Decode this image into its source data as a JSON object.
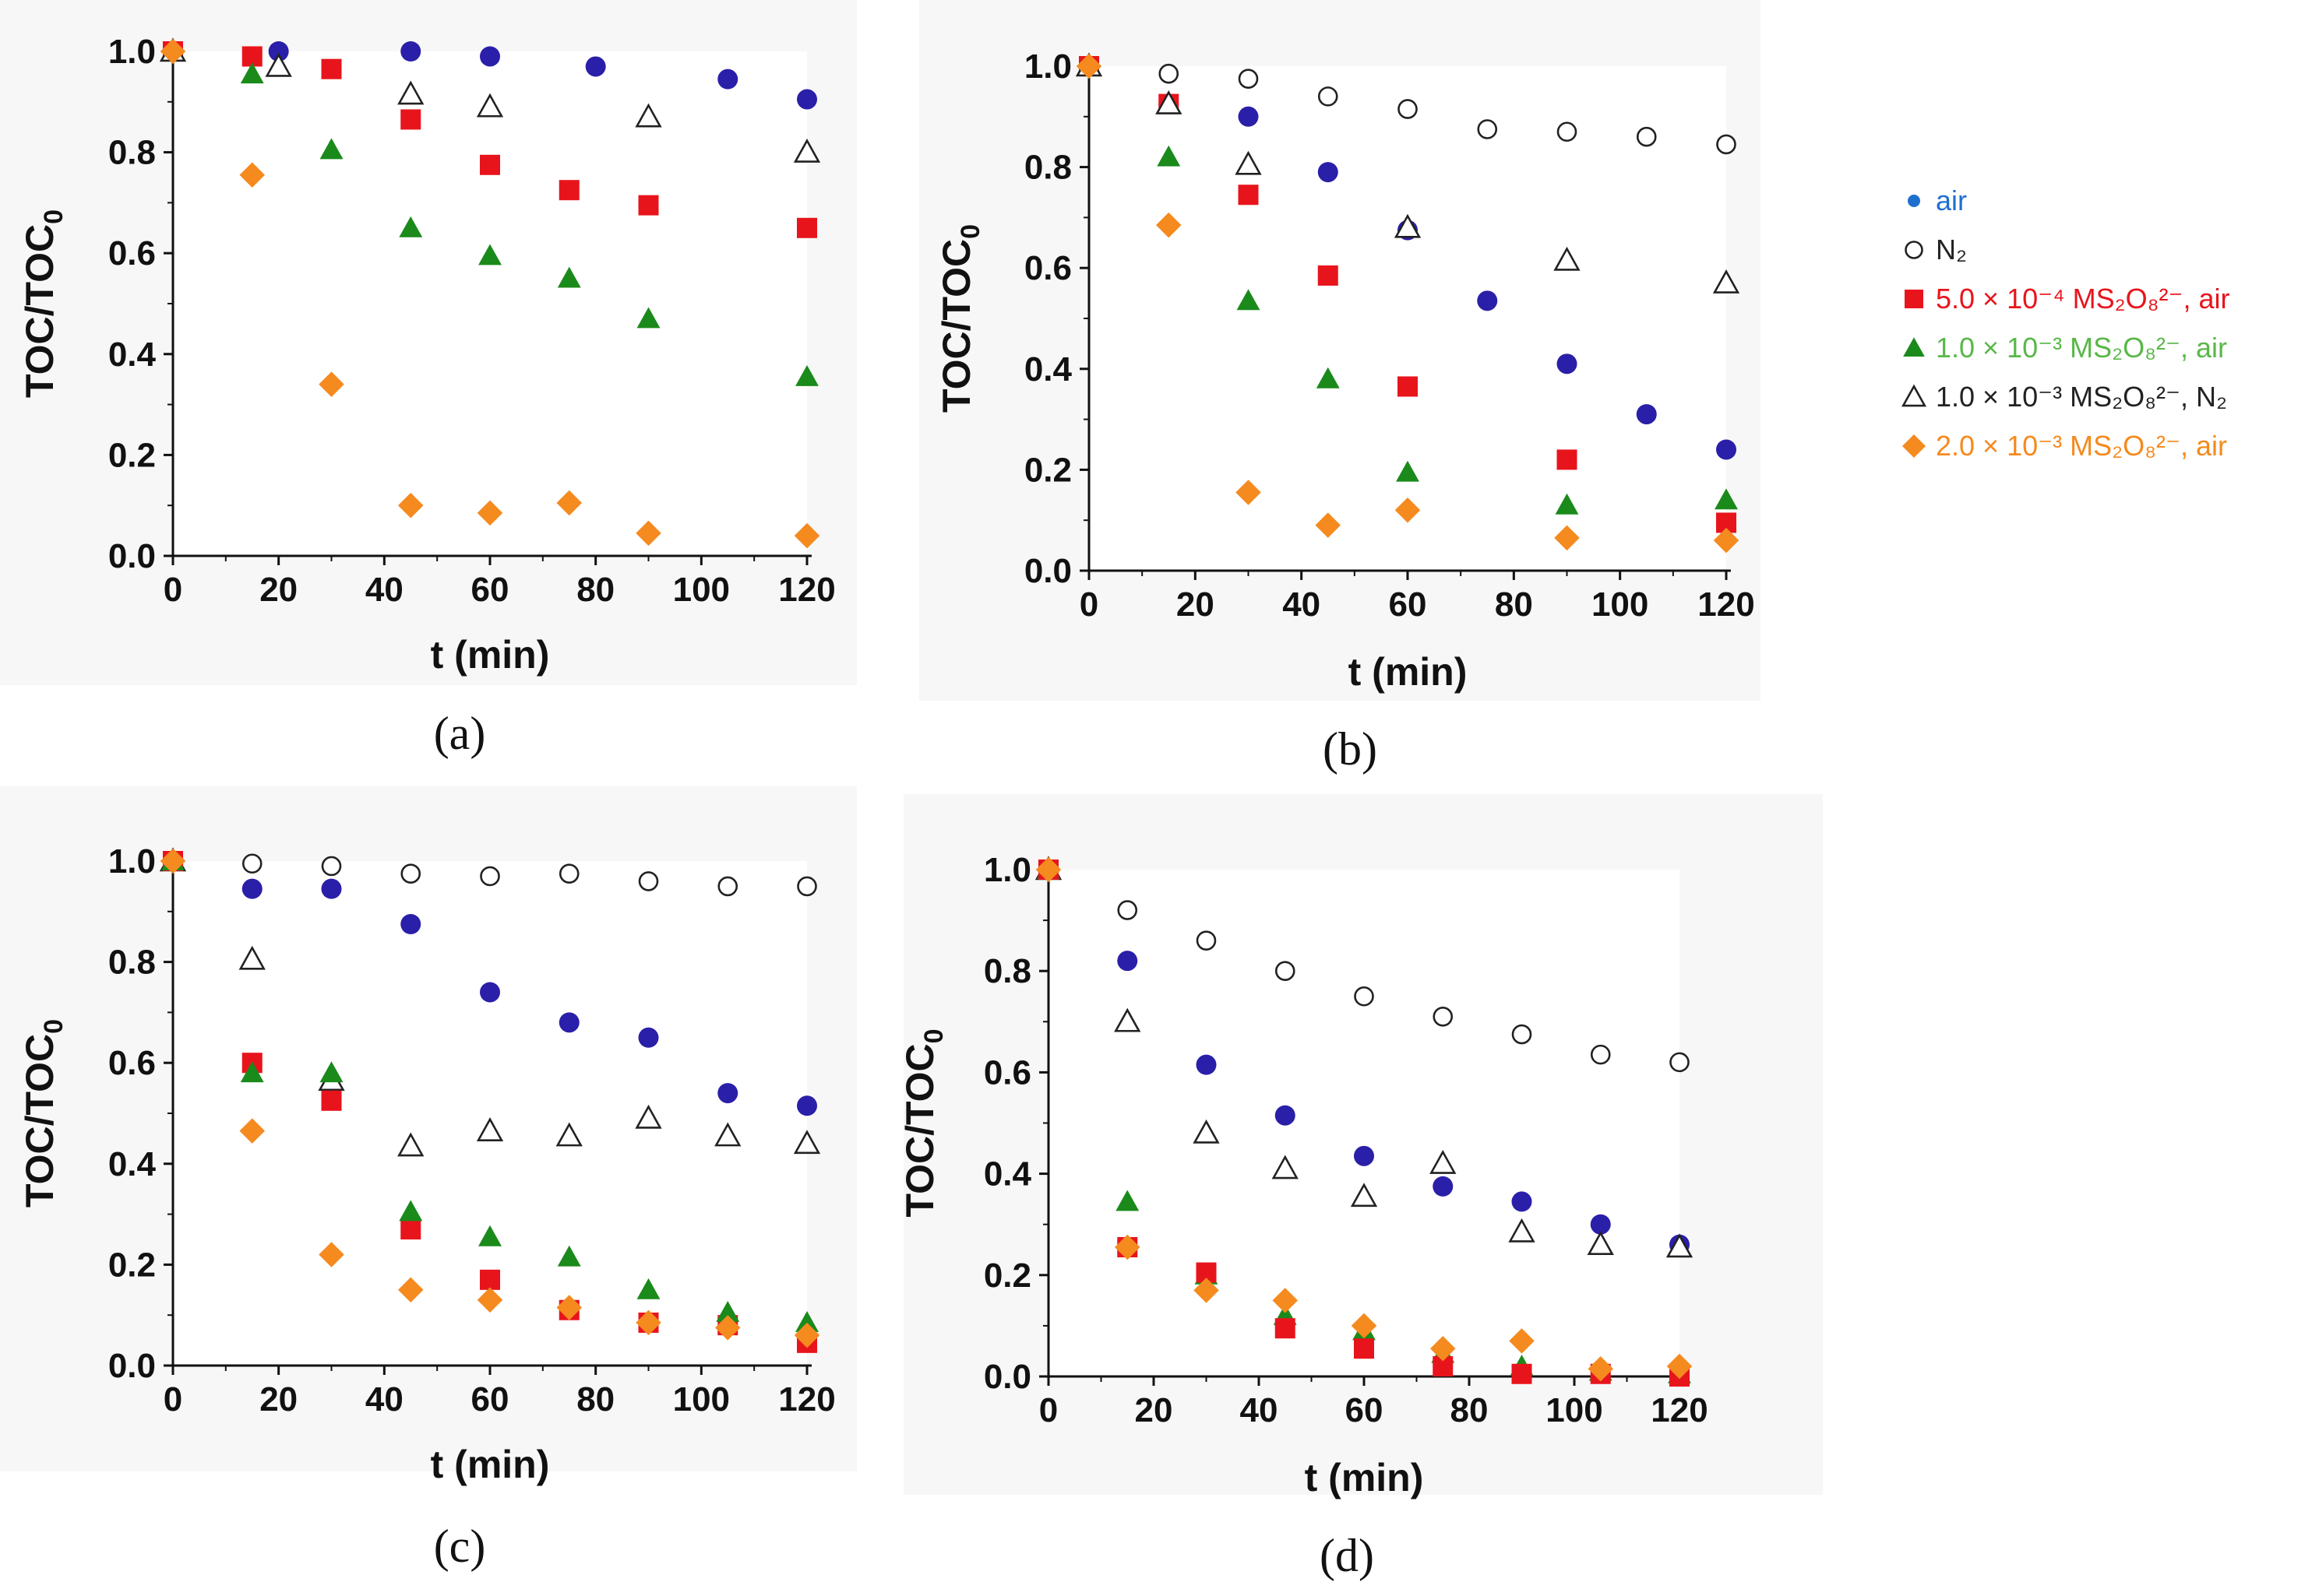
{
  "legend": [
    {
      "key": "air",
      "label": "air",
      "marker": "circle",
      "color": "#2a1fa8",
      "text_color": "#1f6fd1",
      "fill": true
    },
    {
      "key": "N2",
      "label": "N₂",
      "marker": "circle",
      "color": "#222222",
      "text_color": "#222222",
      "fill": false
    },
    {
      "key": "s5e4_air",
      "label": "5.0 × 10⁻⁴ MS₂O₈²⁻, air",
      "marker": "square",
      "color": "#e8141c",
      "text_color": "#e8141c",
      "fill": true
    },
    {
      "key": "s1e3_air",
      "label": "1.0 × 10⁻³ MS₂O₈²⁻, air",
      "marker": "triangle",
      "color": "#1a8a1a",
      "text_color": "#58b848",
      "fill": true
    },
    {
      "key": "s1e3_N2",
      "label": "1.0 × 10⁻³ MS₂O₈²⁻, N₂",
      "marker": "triangle",
      "color": "#222222",
      "text_color": "#222222",
      "fill": false
    },
    {
      "key": "s2e3_air",
      "label": "2.0 × 10⁻³ MS₂O₈²⁻, air",
      "marker": "diamond",
      "color": "#f58a1f",
      "text_color": "#f58a1f",
      "fill": true
    }
  ],
  "chart_data": [
    {
      "id": "a",
      "caption": "(a)",
      "type": "scatter",
      "xlabel": "t (min)",
      "ylabel": "TOC/TOC",
      "ylabel_sub": "0",
      "xlim": [
        0,
        120
      ],
      "ylim": [
        0,
        1.0
      ],
      "xticks": [
        0,
        20,
        40,
        60,
        80,
        100,
        120
      ],
      "yticks": [
        0.0,
        0.2,
        0.4,
        0.6,
        0.8,
        1.0
      ],
      "ytick_labels": [
        "0.0",
        "0.2",
        "0.4",
        "0.6",
        "0.8",
        "1.0"
      ],
      "series": [
        {
          "key": "air",
          "x": [
            0,
            20,
            45,
            60,
            80,
            105,
            120
          ],
          "y": [
            1.0,
            1.0,
            1.0,
            0.99,
            0.97,
            0.945,
            0.905
          ]
        },
        {
          "key": "s5e4_air",
          "x": [
            0,
            15,
            30,
            45,
            60,
            75,
            90,
            120
          ],
          "y": [
            1.0,
            0.99,
            0.965,
            0.865,
            0.775,
            0.725,
            0.695,
            0.65
          ]
        },
        {
          "key": "s1e3_air",
          "x": [
            0,
            15,
            30,
            45,
            60,
            75,
            90,
            120
          ],
          "y": [
            1.0,
            0.955,
            0.805,
            0.65,
            0.595,
            0.55,
            0.47,
            0.355
          ]
        },
        {
          "key": "s1e3_N2",
          "x": [
            0,
            20,
            45,
            60,
            90,
            120
          ],
          "y": [
            1.0,
            0.97,
            0.915,
            0.89,
            0.87,
            0.8
          ]
        },
        {
          "key": "s2e3_air",
          "x": [
            0,
            15,
            30,
            45,
            60,
            75,
            90,
            120
          ],
          "y": [
            1.0,
            0.755,
            0.34,
            0.1,
            0.085,
            0.105,
            0.045,
            0.04
          ]
        }
      ]
    },
    {
      "id": "b",
      "caption": "(b)",
      "type": "scatter",
      "xlabel": "t (min)",
      "ylabel": "TOC/TOC",
      "ylabel_sub": "0",
      "xlim": [
        0,
        120
      ],
      "ylim": [
        0,
        1.0
      ],
      "xticks": [
        0,
        20,
        40,
        60,
        80,
        100,
        120
      ],
      "yticks": [
        0.0,
        0.2,
        0.4,
        0.6,
        0.8,
        1.0
      ],
      "ytick_labels": [
        "0.0",
        "0.2",
        "0.4",
        "0.6",
        "0.8",
        "1.0"
      ],
      "series": [
        {
          "key": "N2",
          "x": [
            0,
            15,
            30,
            45,
            60,
            75,
            90,
            105,
            120
          ],
          "y": [
            1.0,
            0.985,
            0.975,
            0.94,
            0.915,
            0.875,
            0.87,
            0.86,
            0.845
          ]
        },
        {
          "key": "air",
          "x": [
            0,
            15,
            30,
            45,
            60,
            75,
            90,
            105,
            120
          ],
          "y": [
            1.0,
            0.925,
            0.9,
            0.79,
            0.675,
            0.535,
            0.41,
            0.31,
            0.24
          ]
        },
        {
          "key": "s5e4_air",
          "x": [
            0,
            15,
            30,
            45,
            60,
            90,
            120
          ],
          "y": [
            1.0,
            0.925,
            0.745,
            0.585,
            0.365,
            0.22,
            0.095
          ]
        },
        {
          "key": "s1e3_air",
          "x": [
            0,
            15,
            30,
            45,
            60,
            90,
            120
          ],
          "y": [
            1.0,
            0.82,
            0.535,
            0.38,
            0.195,
            0.13,
            0.14
          ]
        },
        {
          "key": "s1e3_N2",
          "x": [
            0,
            15,
            30,
            60,
            90,
            120
          ],
          "y": [
            1.0,
            0.925,
            0.805,
            0.68,
            0.615,
            0.57
          ]
        },
        {
          "key": "s2e3_air",
          "x": [
            0,
            15,
            30,
            45,
            60,
            90,
            120
          ],
          "y": [
            1.0,
            0.685,
            0.155,
            0.09,
            0.12,
            0.065,
            0.06
          ]
        }
      ]
    },
    {
      "id": "c",
      "caption": "(c)",
      "type": "scatter",
      "xlabel": "t (min)",
      "ylabel": "TOC/TOC",
      "ylabel_sub": "0",
      "xlim": [
        0,
        120
      ],
      "ylim": [
        0,
        1.0
      ],
      "xticks": [
        0,
        20,
        40,
        60,
        80,
        100,
        120
      ],
      "yticks": [
        0.0,
        0.2,
        0.4,
        0.6,
        0.8,
        1.0
      ],
      "ytick_labels": [
        "0.0",
        "0.2",
        "0.4",
        "0.6",
        "0.8",
        "1.0"
      ],
      "series": [
        {
          "key": "N2",
          "x": [
            0,
            15,
            30,
            45,
            60,
            75,
            90,
            105,
            120
          ],
          "y": [
            1.0,
            0.995,
            0.99,
            0.975,
            0.97,
            0.975,
            0.96,
            0.95,
            0.95
          ]
        },
        {
          "key": "air",
          "x": [
            0,
            15,
            30,
            45,
            60,
            75,
            90,
            105,
            120
          ],
          "y": [
            1.0,
            0.945,
            0.945,
            0.875,
            0.74,
            0.68,
            0.65,
            0.54,
            0.515
          ]
        },
        {
          "key": "s1e3_N2",
          "x": [
            0,
            15,
            30,
            45,
            60,
            75,
            90,
            105,
            120
          ],
          "y": [
            1.0,
            0.805,
            0.565,
            0.435,
            0.465,
            0.455,
            0.49,
            0.455,
            0.44
          ]
        },
        {
          "key": "s5e4_air",
          "x": [
            0,
            15,
            30,
            45,
            60,
            75,
            90,
            105,
            120
          ],
          "y": [
            1.0,
            0.6,
            0.525,
            0.27,
            0.17,
            0.11,
            0.085,
            0.08,
            0.045
          ]
        },
        {
          "key": "s1e3_air",
          "x": [
            0,
            15,
            30,
            45,
            60,
            75,
            90,
            105,
            120
          ],
          "y": [
            1.0,
            0.58,
            0.58,
            0.305,
            0.255,
            0.215,
            0.15,
            0.105,
            0.085
          ]
        },
        {
          "key": "s2e3_air",
          "x": [
            0,
            15,
            30,
            45,
            60,
            75,
            90,
            105,
            120
          ],
          "y": [
            1.0,
            0.465,
            0.22,
            0.15,
            0.13,
            0.115,
            0.085,
            0.075,
            0.06
          ]
        }
      ]
    },
    {
      "id": "d",
      "caption": "(d)",
      "type": "scatter",
      "xlabel": "t (min)",
      "ylabel": "TOC/TOC",
      "ylabel_sub": "0",
      "xlim": [
        0,
        120
      ],
      "ylim": [
        0,
        1.0
      ],
      "xticks": [
        0,
        20,
        40,
        60,
        80,
        100,
        120
      ],
      "yticks": [
        0.0,
        0.2,
        0.4,
        0.6,
        0.8,
        1.0
      ],
      "ytick_labels": [
        "0.0",
        "0.2",
        "0.4",
        "0.6",
        "0.8",
        "1.0"
      ],
      "series": [
        {
          "key": "N2",
          "x": [
            0,
            15,
            30,
            45,
            60,
            75,
            90,
            105,
            120
          ],
          "y": [
            1.0,
            0.92,
            0.86,
            0.8,
            0.75,
            0.71,
            0.675,
            0.635,
            0.62
          ]
        },
        {
          "key": "air",
          "x": [
            0,
            15,
            30,
            45,
            60,
            75,
            90,
            105,
            120
          ],
          "y": [
            1.0,
            0.82,
            0.615,
            0.515,
            0.435,
            0.375,
            0.345,
            0.3,
            0.26
          ]
        },
        {
          "key": "s1e3_N2",
          "x": [
            0,
            15,
            30,
            45,
            60,
            75,
            90,
            105,
            120
          ],
          "y": [
            1.0,
            0.7,
            0.48,
            0.41,
            0.355,
            0.42,
            0.285,
            0.26,
            0.255
          ]
        },
        {
          "key": "s1e3_air",
          "x": [
            0,
            15,
            30,
            45,
            60,
            75,
            90,
            105,
            120
          ],
          "y": [
            1.0,
            0.345,
            0.2,
            0.12,
            0.09,
            0.045,
            0.02,
            0.01,
            0.005
          ]
        },
        {
          "key": "s5e4_air",
          "x": [
            0,
            15,
            30,
            45,
            60,
            75,
            90,
            105,
            120
          ],
          "y": [
            1.0,
            0.255,
            0.205,
            0.095,
            0.055,
            0.02,
            0.005,
            0.005,
            0.0
          ]
        },
        {
          "key": "s2e3_air",
          "x": [
            0,
            15,
            30,
            45,
            60,
            75,
            90,
            105,
            120
          ],
          "y": [
            1.0,
            0.255,
            0.17,
            0.15,
            0.1,
            0.055,
            0.07,
            0.015,
            0.02
          ]
        }
      ]
    }
  ]
}
